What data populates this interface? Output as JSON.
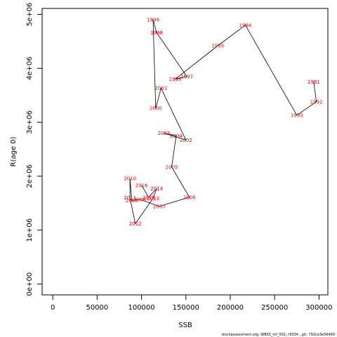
{
  "chart_data": {
    "type": "line",
    "xlabel": "SSB",
    "ylabel": "R(age 0)",
    "xlim": [
      -12000,
      310000
    ],
    "ylim": [
      -200000,
      5110000
    ],
    "x_ticks": [
      {
        "value": 0,
        "label": "0"
      },
      {
        "value": 50000,
        "label": "50000"
      },
      {
        "value": 100000,
        "label": "100000"
      },
      {
        "value": 150000,
        "label": "150000"
      },
      {
        "value": 200000,
        "label": "200000"
      },
      {
        "value": 250000,
        "label": "250000"
      },
      {
        "value": 300000,
        "label": "300000"
      }
    ],
    "y_ticks": [
      {
        "value": 0,
        "label": "0e+00"
      },
      {
        "value": 1000000,
        "label": "1e+06"
      },
      {
        "value": 2000000,
        "label": "2e+06"
      },
      {
        "value": 3000000,
        "label": "3e+06"
      },
      {
        "value": 4000000,
        "label": "4e+06"
      },
      {
        "value": 5000000,
        "label": "5e+06"
      }
    ],
    "line_color": "#000000",
    "label_color": "#ff0000",
    "points": [
      {
        "year": "1991",
        "x": 294000,
        "y": 3750000
      },
      {
        "year": "1992",
        "x": 297000,
        "y": 3380000
      },
      {
        "year": "1993",
        "x": 275000,
        "y": 3130000
      },
      {
        "year": "1994",
        "x": 217000,
        "y": 4800000
      },
      {
        "year": "1995",
        "x": 186000,
        "y": 4420000
      },
      {
        "year": "1996",
        "x": 138000,
        "y": 3800000
      },
      {
        "year": "1997",
        "x": 151000,
        "y": 3850000
      },
      {
        "year": "1998",
        "x": 117000,
        "y": 4660000
      },
      {
        "year": "1999",
        "x": 113000,
        "y": 4900000
      },
      {
        "year": "2000",
        "x": 116000,
        "y": 3260000
      },
      {
        "year": "2001",
        "x": 122000,
        "y": 3630000
      },
      {
        "year": "2002",
        "x": 150000,
        "y": 2670000
      },
      {
        "year": "2003",
        "x": 125000,
        "y": 2800000
      },
      {
        "year": "2004",
        "x": 139000,
        "y": 2750000
      },
      {
        "year": "2005",
        "x": 134000,
        "y": 2170000
      },
      {
        "year": "2006",
        "x": 154000,
        "y": 1610000
      },
      {
        "year": "2007",
        "x": 120000,
        "y": 1440000
      },
      {
        "year": "2008",
        "x": 98000,
        "y": 1570000
      },
      {
        "year": "2009",
        "x": 89000,
        "y": 1550000
      },
      {
        "year": "2010",
        "x": 87000,
        "y": 1960000
      },
      {
        "year": "2011",
        "x": 87000,
        "y": 1600000
      },
      {
        "year": "2012",
        "x": 93000,
        "y": 1120000
      },
      {
        "year": "2013",
        "x": 113000,
        "y": 1590000
      },
      {
        "year": "2014",
        "x": 117000,
        "y": 1770000
      },
      {
        "year": "2015",
        "x": 108000,
        "y": 1610000
      },
      {
        "year": "2016",
        "x": 100000,
        "y": 1830000
      }
    ]
  },
  "footer": "stockassessment.org,  WBSS_mf_002,  r9334 ,  git: 792ca3e56499"
}
